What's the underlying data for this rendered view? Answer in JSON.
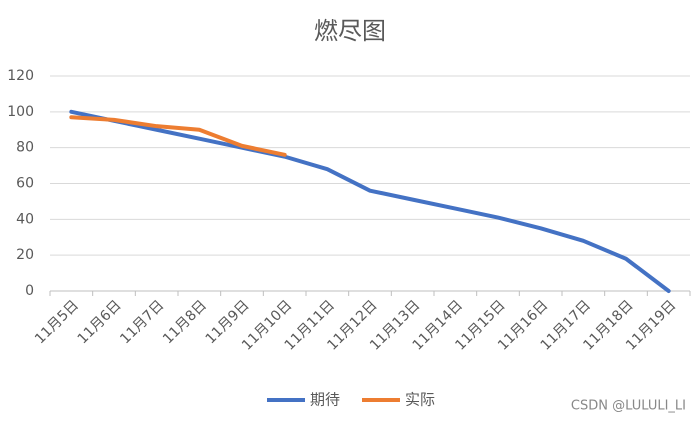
{
  "chart_data": {
    "type": "line",
    "title": "燃尽图",
    "categories": [
      "11月5日",
      "11月6日",
      "11月7日",
      "11月8日",
      "11月9日",
      "11月10日",
      "11月11日",
      "11月12日",
      "11月13日",
      "11月14日",
      "11月15日",
      "11月16日",
      "11月17日",
      "11月18日",
      "11月19日"
    ],
    "series": [
      {
        "name": "期待",
        "color": "#4472c4",
        "values": [
          100,
          95,
          90,
          85,
          80,
          75,
          68,
          56,
          51,
          46,
          41,
          35,
          28,
          18,
          0
        ]
      },
      {
        "name": "实际",
        "color": "#ed7d31",
        "values": [
          97,
          95.5,
          92,
          90,
          81,
          76,
          null,
          null,
          null,
          null,
          null,
          null,
          null,
          null,
          null
        ]
      }
    ],
    "ylim": [
      0,
      120
    ],
    "yticks": [
      0,
      20,
      40,
      60,
      80,
      100,
      120
    ],
    "grid": true,
    "legend": "bottom",
    "annotations": [
      "CSDN @LULULI_LI"
    ]
  }
}
